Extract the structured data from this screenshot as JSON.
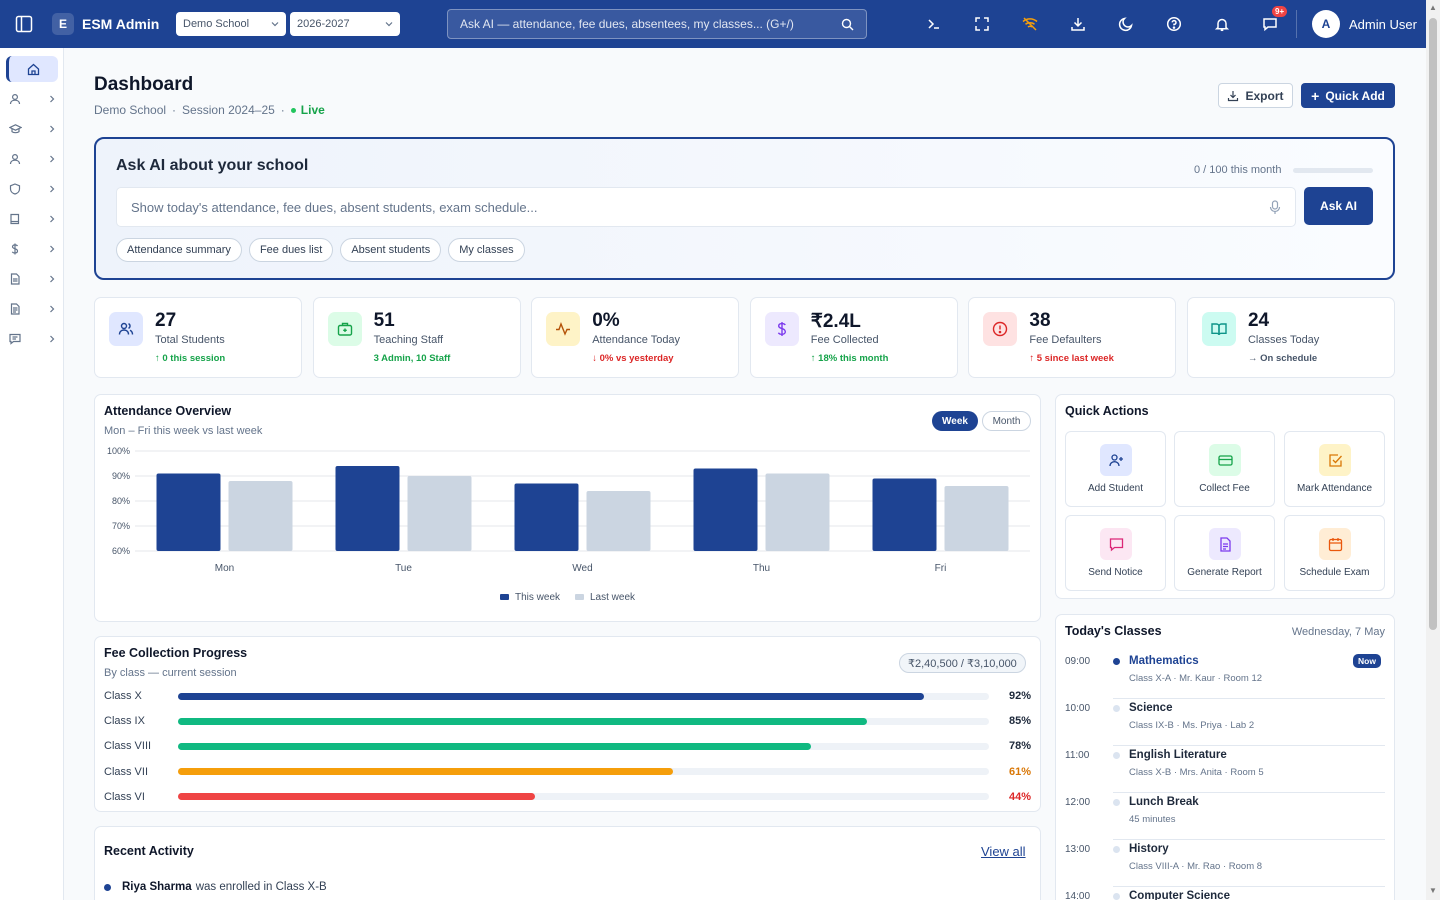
{
  "topbar": {
    "brand_letter": "E",
    "brand_name": "ESM Admin",
    "school_select": "Demo School",
    "year_select": "2026-2027",
    "search_placeholder": "Ask AI — attendance, fee dues, absentees, my classes... (G+/)",
    "notification_badge": "9+",
    "user_initial": "A",
    "user_name": "Admin User",
    "icons": [
      "terminal-icon",
      "fullscreen-icon",
      "wifi-off-icon",
      "download-icon",
      "moon-icon",
      "help-icon",
      "bell-icon",
      "chat-icon"
    ]
  },
  "sidebar": {
    "items": [
      "home-icon",
      "user-icon",
      "graduation-cap-icon",
      "user-icon",
      "shield-icon",
      "book-icon",
      "dollar-icon",
      "file-icon",
      "file-text-icon",
      "message-icon"
    ]
  },
  "header": {
    "title": "Dashboard",
    "school": "Demo School",
    "session": "Session 2024–25",
    "live": "Live",
    "export_label": "Export",
    "quick_add_label": "Quick Add"
  },
  "ask_ai": {
    "title": "Ask AI about your school",
    "quota": "0 / 100 this month",
    "quota_fraction": 0,
    "placeholder": "Show today's attendance, fee dues, absent students, exam schedule...",
    "button": "Ask AI",
    "chips": [
      "Attendance summary",
      "Fee dues list",
      "Absent students",
      "My classes"
    ]
  },
  "stats": [
    {
      "value": "27",
      "label": "Total Students",
      "delta": "↑ 0 this session",
      "tone": "up",
      "icon": "users-icon",
      "color": "#1e4393",
      "bg": "#e0e7ff"
    },
    {
      "value": "51",
      "label": "Teaching Staff",
      "delta": "3 Admin, 10 Staff",
      "tone": "up",
      "icon": "briefcase-icon",
      "color": "#16a34a",
      "bg": "#dcfce7"
    },
    {
      "value": "0%",
      "label": "Attendance Today",
      "delta": "↓ 0% vs yesterday",
      "tone": "down",
      "icon": "activity-icon",
      "color": "#b45309",
      "bg": "#fef3c7"
    },
    {
      "value": "₹2.4L",
      "label": "Fee Collected",
      "delta": "↑ 18% this month",
      "tone": "up",
      "icon": "dollar-icon",
      "color": "#7c3aed",
      "bg": "#ede9fe"
    },
    {
      "value": "38",
      "label": "Fee Defaulters",
      "delta": "↑ 5 since last week",
      "tone": "down",
      "icon": "alert-icon",
      "color": "#dc2626",
      "bg": "#fee2e2"
    },
    {
      "value": "24",
      "label": "Classes Today",
      "delta": "→ On schedule",
      "tone": "neutral",
      "icon": "book-open-icon",
      "color": "#0d9488",
      "bg": "#ccfbf1"
    }
  ],
  "attendance": {
    "title": "Attendance Overview",
    "subtitle": "Mon – Fri this week vs last week",
    "toggle_week": "Week",
    "toggle_month": "Month",
    "chart_data": {
      "type": "bar",
      "categories": [
        "Mon",
        "Tue",
        "Wed",
        "Thu",
        "Fri"
      ],
      "series": [
        {
          "name": "This week",
          "values": [
            91,
            94,
            87,
            93,
            89
          ],
          "color": "#1e4393"
        },
        {
          "name": "Last week",
          "values": [
            88,
            90,
            84,
            91,
            86
          ],
          "color": "#cbd5e1"
        }
      ],
      "ylim": [
        60,
        100
      ],
      "yticks": [
        "60%",
        "70%",
        "80%",
        "90%",
        "100%"
      ],
      "grid": true,
      "legend": "bottom-center"
    }
  },
  "quick_actions": {
    "title": "Quick Actions",
    "items": [
      {
        "label": "Add Student",
        "icon": "user-plus-icon",
        "color": "#1e4393",
        "bg": "#e0e7ff"
      },
      {
        "label": "Collect Fee",
        "icon": "credit-card-icon",
        "color": "#16a34a",
        "bg": "#dcfce7"
      },
      {
        "label": "Mark Attendance",
        "icon": "check-square-icon",
        "color": "#d97706",
        "bg": "#fef3c7"
      },
      {
        "label": "Send Notice",
        "icon": "message-icon",
        "color": "#db2777",
        "bg": "#fce7f3"
      },
      {
        "label": "Generate Report",
        "icon": "file-text-icon",
        "color": "#7c3aed",
        "bg": "#ede9fe"
      },
      {
        "label": "Schedule Exam",
        "icon": "calendar-icon",
        "color": "#ea580c",
        "bg": "#ffedd5"
      }
    ]
  },
  "fee": {
    "title": "Fee Collection Progress",
    "subtitle": "By class — current session",
    "total": "₹2,40,500 / ₹3,10,000",
    "rows": [
      {
        "label": "Class X",
        "pct": 92,
        "text": "92%",
        "color": "#1e4393",
        "text_color": "#1e293b"
      },
      {
        "label": "Class IX",
        "pct": 85,
        "text": "85%",
        "color": "#10b981",
        "text_color": "#1e293b"
      },
      {
        "label": "Class VIII",
        "pct": 78,
        "text": "78%",
        "color": "#10b981",
        "text_color": "#1e293b"
      },
      {
        "label": "Class VII",
        "pct": 61,
        "text": "61%",
        "color": "#f59e0b",
        "text_color": "#d97706"
      },
      {
        "label": "Class VI",
        "pct": 44,
        "text": "44%",
        "color": "#ef4444",
        "text_color": "#dc2626"
      }
    ]
  },
  "activity": {
    "title": "Recent Activity",
    "view_all": "View all",
    "first_name": "Riya Sharma",
    "first_text": "was enrolled in Class X-B"
  },
  "classes": {
    "title": "Today's Classes",
    "date": "Wednesday, 7 May",
    "now_badge": "Now",
    "items": [
      {
        "time": "09:00",
        "name": "Mathematics",
        "meta": "Class X-A · Mr. Kaur · Room 12",
        "active": true
      },
      {
        "time": "10:00",
        "name": "Science",
        "meta": "Class IX-B · Ms. Priya · Lab 2",
        "active": false
      },
      {
        "time": "11:00",
        "name": "English Literature",
        "meta": "Class X-B · Mrs. Anita · Room 5",
        "active": false
      },
      {
        "time": "12:00",
        "name": "Lunch Break",
        "meta": "45 minutes",
        "active": false
      },
      {
        "time": "13:00",
        "name": "History",
        "meta": "Class VIII-A · Mr. Rao · Room 8",
        "active": false
      },
      {
        "time": "14:00",
        "name": "Computer Science",
        "meta": "",
        "active": false
      }
    ]
  }
}
